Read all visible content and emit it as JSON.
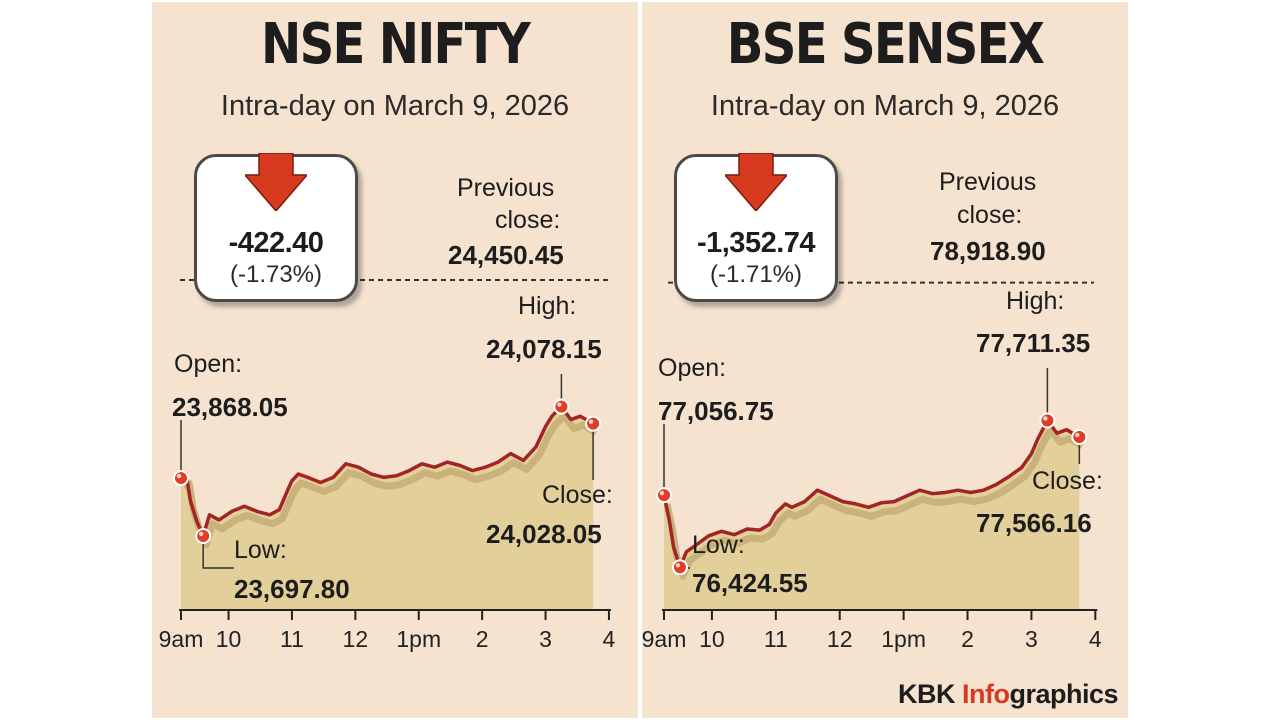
{
  "footer": {
    "credit_kbk": "KBK",
    "credit_info": "Info",
    "credit_graphics": "graphics"
  },
  "colors": {
    "background": "#f6e3cf",
    "line": "#a32424",
    "area": "#e2cf9a",
    "arrow": "#d83a20",
    "marker": "#e23b26"
  },
  "chart_data": [
    {
      "type": "area",
      "title": "NSE NIFTY",
      "subtitle": "Intra-day on March 9, 2026",
      "change": {
        "value": "-422.40",
        "percent": "(-1.73%)",
        "direction": "down",
        "icon": "down-arrow-icon"
      },
      "previous_close": {
        "label_1": "Previous",
        "label_2": "close:",
        "value": "24,450.45",
        "y": 24450.45
      },
      "annotations": {
        "open": {
          "label": "Open:",
          "value": "23,868.05",
          "x": 0.0,
          "y": 23868.05
        },
        "low": {
          "label": "Low:",
          "value": "23,697.80",
          "x": 0.35,
          "y": 23697.8
        },
        "high": {
          "label": "High:",
          "value": "24,078.15",
          "x": 6.0,
          "y": 24078.15
        },
        "close": {
          "label": "Close:",
          "value": "24,028.05",
          "x": 6.5,
          "y": 24028.05
        }
      },
      "x_ticks": [
        "9am",
        "10",
        "11",
        "12",
        "1pm",
        "2",
        "3",
        "4"
      ],
      "x_tick_values": [
        0,
        0.75,
        1.75,
        2.75,
        3.75,
        4.75,
        5.75,
        6.75
      ],
      "ylim": [
        23480,
        24480
      ],
      "x": [
        0,
        0.08,
        0.15,
        0.25,
        0.35,
        0.45,
        0.6,
        0.8,
        1.0,
        1.2,
        1.4,
        1.55,
        1.7,
        1.75,
        1.85,
        2.0,
        2.2,
        2.4,
        2.6,
        2.8,
        3.0,
        3.2,
        3.4,
        3.6,
        3.8,
        4.0,
        4.2,
        4.4,
        4.6,
        4.8,
        5.0,
        5.2,
        5.4,
        5.6,
        5.75,
        5.85,
        6.0,
        6.15,
        6.3,
        6.5
      ],
      "y": [
        23868.05,
        23880,
        23800,
        23740,
        23697.8,
        23760,
        23745,
        23770,
        23785,
        23770,
        23760,
        23775,
        23840,
        23860,
        23880,
        23870,
        23855,
        23870,
        23910,
        23900,
        23880,
        23870,
        23875,
        23890,
        23910,
        23900,
        23915,
        23905,
        23890,
        23900,
        23915,
        23940,
        23920,
        23960,
        24020,
        24050,
        24078.15,
        24040,
        24050,
        24028.05
      ]
    },
    {
      "type": "area",
      "title": "BSE SENSEX",
      "subtitle": "Intra-day on March 9, 2026",
      "change": {
        "value": "-1,352.74",
        "percent": "(-1.71%)",
        "direction": "down",
        "icon": "down-arrow-icon"
      },
      "previous_close": {
        "label_1": "Previous",
        "label_2": "close:",
        "value": "78,918.90",
        "y": 78918.9
      },
      "annotations": {
        "open": {
          "label": "Open:",
          "value": "77,056.75",
          "x": 0.0,
          "y": 77056.75
        },
        "low": {
          "label": "Low:",
          "value": "76,424.55",
          "x": 0.25,
          "y": 76424.55
        },
        "high": {
          "label": "High:",
          "value": "77,711.35",
          "x": 6.0,
          "y": 77711.35
        },
        "close": {
          "label": "Close:",
          "value": "77,566.16",
          "x": 6.5,
          "y": 77566.16
        }
      },
      "x_ticks": [
        "9am",
        "10",
        "11",
        "12",
        "1pm",
        "2",
        "3",
        "4"
      ],
      "x_tick_values": [
        0,
        0.75,
        1.75,
        2.75,
        3.75,
        4.75,
        5.75,
        6.75
      ],
      "ylim": [
        76050,
        79030
      ],
      "x": [
        0,
        0.08,
        0.15,
        0.25,
        0.35,
        0.5,
        0.7,
        0.9,
        1.1,
        1.3,
        1.5,
        1.65,
        1.75,
        1.9,
        2.0,
        2.2,
        2.4,
        2.6,
        2.8,
        3.0,
        3.2,
        3.4,
        3.6,
        3.8,
        4.0,
        4.2,
        4.4,
        4.6,
        4.8,
        5.0,
        5.2,
        5.4,
        5.6,
        5.75,
        5.85,
        6.0,
        6.15,
        6.3,
        6.5
      ],
      "y": [
        77056.75,
        76850,
        76600,
        76424.55,
        76560,
        76620,
        76700,
        76740,
        76710,
        76760,
        76750,
        76800,
        76900,
        76980,
        76950,
        77000,
        77100,
        77050,
        77000,
        76980,
        76950,
        76990,
        77000,
        77050,
        77100,
        77070,
        77080,
        77100,
        77080,
        77100,
        77150,
        77220,
        77300,
        77420,
        77550,
        77711.35,
        77600,
        77630,
        77566.16
      ]
    }
  ]
}
